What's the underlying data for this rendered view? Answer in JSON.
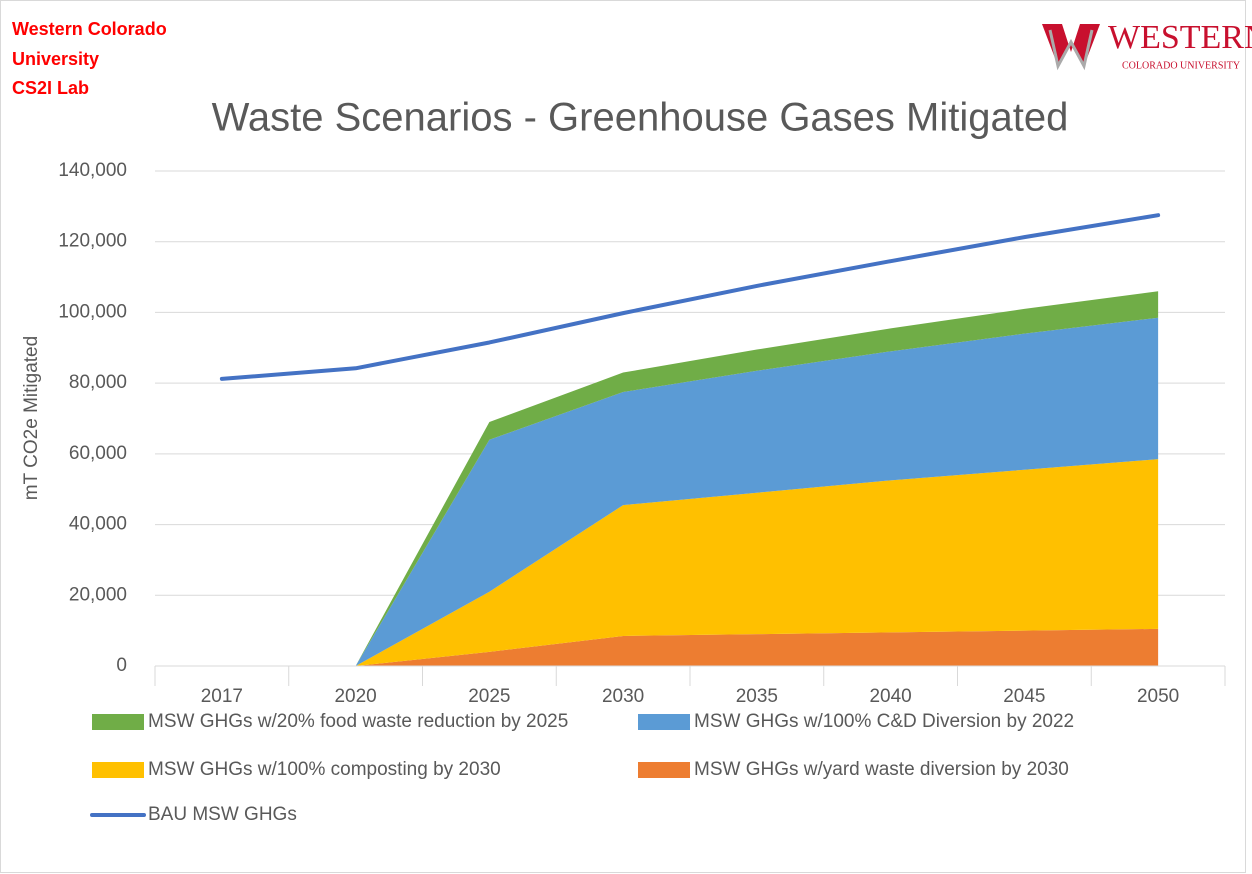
{
  "header": {
    "org_lines": [
      "Western Colorado",
      "University",
      "CS2I Lab"
    ],
    "logo_name": "WESTERN",
    "logo_sub": "COLORADO UNIVERSITY"
  },
  "chart_data": {
    "type": "area",
    "title": "Waste Scenarios - Greenhouse Gases Mitigated",
    "y_label": "mT CO2e Mitigated",
    "categories": [
      "2017",
      "2020",
      "2025",
      "2030",
      "2035",
      "2040",
      "2045",
      "2050"
    ],
    "series": [
      {
        "name": "MSW GHGs w/20% food waste reduction by 2025",
        "color": "#70ad47",
        "values": [
          null,
          0,
          5000,
          5500,
          6000,
          6500,
          7000,
          7500
        ]
      },
      {
        "name": "MSW GHGs w/100% C&D Diversion by 2022",
        "color": "#5b9bd5",
        "values": [
          null,
          0,
          43000,
          32000,
          34500,
          36500,
          38500,
          40000
        ]
      },
      {
        "name": "MSW GHGs w/100% composting by 2030",
        "color": "#ffc000",
        "values": [
          null,
          0,
          17000,
          37000,
          40000,
          43000,
          45500,
          48000
        ]
      },
      {
        "name": "MSW GHGs w/yard waste diversion by 2030",
        "color": "#ed7d31",
        "values": [
          null,
          0,
          4000,
          8500,
          9000,
          9500,
          10000,
          10500
        ]
      },
      {
        "name": "BAU MSW GHGs",
        "color": "#4472c4",
        "kind": "line",
        "values": [
          81200,
          84200,
          91500,
          99800,
          107500,
          114500,
          121300,
          127500
        ]
      }
    ],
    "ylim": [
      0,
      140000
    ],
    "yticks": [
      0,
      {
        "value": 20000,
        "label": "20,000"
      },
      {
        "value": 40000,
        "label": "40,000"
      },
      {
        "value": 60000,
        "label": "60,000"
      },
      {
        "value": 80000,
        "label": "80,000"
      },
      {
        "value": 100000,
        "label": "100,000"
      },
      {
        "value": 120000,
        "label": "120,000"
      },
      {
        "value": 140000,
        "label": "140,000"
      }
    ],
    "grid": true
  }
}
